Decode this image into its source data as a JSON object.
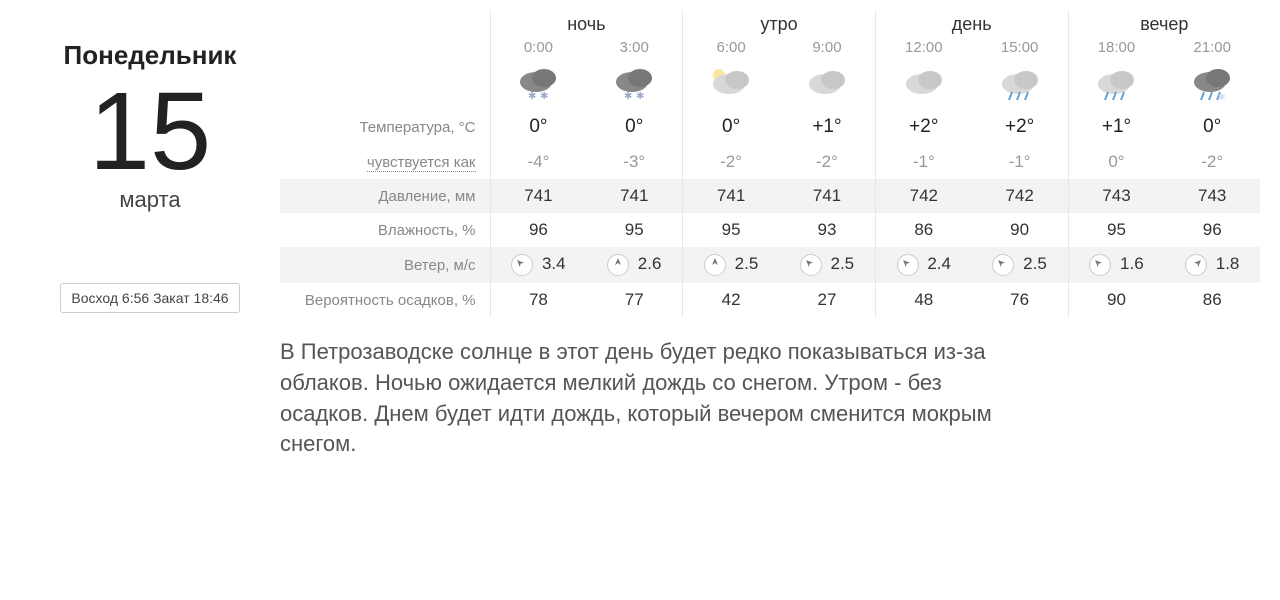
{
  "date": {
    "weekday": "Понедельник",
    "day": "15",
    "month": "марта"
  },
  "sun": {
    "sunrise_label": "Восход",
    "sunrise": "6:56",
    "sunset_label": "Закат",
    "sunset": "18:46"
  },
  "parts": [
    {
      "label": "ночь",
      "times": [
        "0:00",
        "3:00"
      ]
    },
    {
      "label": "утро",
      "times": [
        "6:00",
        "9:00"
      ]
    },
    {
      "label": "день",
      "times": [
        "12:00",
        "15:00"
      ]
    },
    {
      "label": "вечер",
      "times": [
        "18:00",
        "21:00"
      ]
    }
  ],
  "rows": {
    "temp_label": "Температура, °C",
    "feels_label": "чувствуется как",
    "pressure_label": "Давление, мм",
    "humidity_label": "Влажность, %",
    "wind_label": "Ветер, м/с",
    "precip_label": "Вероятность осадков, %"
  },
  "hours": [
    {
      "icon": "snow-night",
      "temp": "0°",
      "feels": "-4°",
      "pressure": "741",
      "humidity": "96",
      "wind_dir": -45,
      "wind": "3.4",
      "precip": "78"
    },
    {
      "icon": "snow-night",
      "temp": "0°",
      "feels": "-3°",
      "pressure": "741",
      "humidity": "95",
      "wind_dir": 0,
      "wind": "2.6",
      "precip": "77"
    },
    {
      "icon": "cloud-moon",
      "temp": "0°",
      "feels": "-2°",
      "pressure": "741",
      "humidity": "95",
      "wind_dir": 0,
      "wind": "2.5",
      "precip": "42"
    },
    {
      "icon": "cloudy",
      "temp": "+1°",
      "feels": "-2°",
      "pressure": "741",
      "humidity": "93",
      "wind_dir": -45,
      "wind": "2.5",
      "precip": "27"
    },
    {
      "icon": "cloudy",
      "temp": "+2°",
      "feels": "-1°",
      "pressure": "742",
      "humidity": "86",
      "wind_dir": -45,
      "wind": "2.4",
      "precip": "48"
    },
    {
      "icon": "rain",
      "temp": "+2°",
      "feels": "-1°",
      "pressure": "742",
      "humidity": "90",
      "wind_dir": -45,
      "wind": "2.5",
      "precip": "76"
    },
    {
      "icon": "rain",
      "temp": "+1°",
      "feels": "0°",
      "pressure": "743",
      "humidity": "95",
      "wind_dir": -45,
      "wind": "1.6",
      "precip": "90"
    },
    {
      "icon": "sleet-night",
      "temp": "0°",
      "feels": "-2°",
      "pressure": "743",
      "humidity": "96",
      "wind_dir": 45,
      "wind": "1.8",
      "precip": "86"
    }
  ],
  "summary": "В Петрозаводске солнце в этот день будет редко показываться из-за облаков. Ночью ожидается мелкий дождь со снегом. Утром - без осадков. Днем будет идти дождь, который вечером сменится мокрым снегом.",
  "colors": {
    "cloud": "#d0d0d0",
    "cloud_dark": "#989898",
    "text": "#333333",
    "muted": "#999999",
    "stripe": "#f3f3f3"
  }
}
